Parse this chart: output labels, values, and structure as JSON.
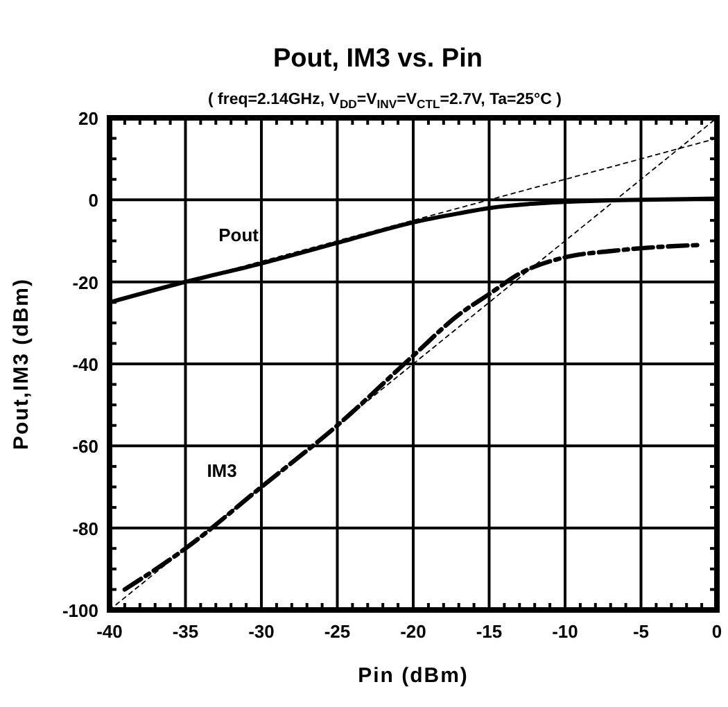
{
  "chart_data": {
    "type": "line",
    "title": "Pout, IM3 vs. Pin",
    "subtitle": "( freq=2.14GHz, V$_{DD}$=V$_{INV}$=V$_{CTL}$=2.7V, Ta=25°C )",
    "xlabel": "Pin (dBm)",
    "ylabel": "Pout,IM3 (dBm)",
    "xlim": [
      -40,
      0
    ],
    "ylim": [
      -100,
      20
    ],
    "xticks": [
      -40,
      -35,
      -30,
      -25,
      -20,
      -15,
      -10,
      -5,
      0
    ],
    "yticks": [
      -100,
      -80,
      -60,
      -40,
      -20,
      0,
      20
    ],
    "grid": true,
    "series": [
      {
        "name": "Pout",
        "color": "#000000",
        "line_style": "solid",
        "x": [
          -40,
          -35,
          -30,
          -25,
          -20,
          -17,
          -15,
          -12,
          -10,
          -7,
          -5,
          -2,
          0
        ],
        "values": [
          -25,
          -20,
          -15.5,
          -10.5,
          -5.5,
          -3.3,
          -2,
          -0.9,
          -0.5,
          -0.1,
          0,
          0.2,
          0.3
        ]
      },
      {
        "name": "IM3",
        "color": "#000000",
        "line_style": "dashed",
        "x": [
          -39,
          -35,
          -30,
          -25,
          -20,
          -17,
          -15,
          -13,
          -10,
          -7,
          -5,
          -3,
          -1
        ],
        "values": [
          -95,
          -85,
          -70,
          -55,
          -38,
          -28,
          -23,
          -18,
          -14,
          -12.5,
          -11.8,
          -11.3,
          -11
        ]
      },
      {
        "color": "#000000",
        "line_style": "dotted",
        "x": [
          -40,
          0
        ],
        "values": [
          -25,
          15
        ]
      },
      {
        "color": "#000000",
        "line_style": "dotted",
        "x": [
          -40,
          0
        ],
        "values": [
          -100,
          20
        ]
      }
    ]
  }
}
